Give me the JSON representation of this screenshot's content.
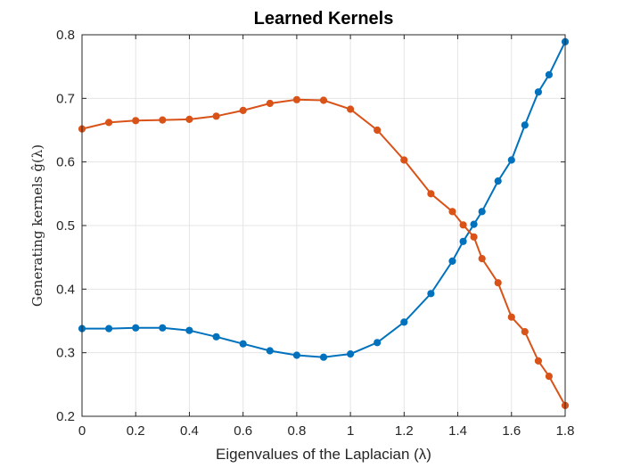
{
  "chart_data": {
    "type": "line",
    "title": "Learned Kernels",
    "xlabel": "Eigenvalues of the Laplacian (λ)",
    "ylabel": "Generating kernels ĝ(λ)",
    "xlim": [
      0,
      1.8
    ],
    "ylim": [
      0.2,
      0.8
    ],
    "x_ticks": [
      "0",
      "0.2",
      "0.4",
      "0.6",
      "0.8",
      "1",
      "1.2",
      "1.4",
      "1.6",
      "1.8"
    ],
    "y_ticks": [
      "0.2",
      "0.3",
      "0.4",
      "0.5",
      "0.6",
      "0.7",
      "0.8"
    ],
    "grid": true,
    "series": [
      {
        "color": "#0072BD",
        "x": [
          0,
          0.1,
          0.2,
          0.3,
          0.4,
          0.5,
          0.6,
          0.7,
          0.8,
          0.9,
          1.0,
          1.1,
          1.2,
          1.3,
          1.38,
          1.42,
          1.46,
          1.49,
          1.55,
          1.6,
          1.65,
          1.7,
          1.74,
          1.8
        ],
        "y": [
          0.338,
          0.338,
          0.339,
          0.339,
          0.335,
          0.325,
          0.314,
          0.303,
          0.296,
          0.293,
          0.298,
          0.316,
          0.348,
          0.393,
          0.444,
          0.475,
          0.502,
          0.522,
          0.57,
          0.603,
          0.658,
          0.71,
          0.737,
          0.789
        ]
      },
      {
        "color": "#D95319",
        "x": [
          0,
          0.1,
          0.2,
          0.3,
          0.4,
          0.5,
          0.6,
          0.7,
          0.8,
          0.9,
          1.0,
          1.1,
          1.2,
          1.3,
          1.38,
          1.42,
          1.46,
          1.49,
          1.55,
          1.6,
          1.65,
          1.7,
          1.74,
          1.8
        ],
        "y": [
          0.652,
          0.662,
          0.665,
          0.666,
          0.667,
          0.672,
          0.681,
          0.692,
          0.698,
          0.697,
          0.683,
          0.65,
          0.603,
          0.55,
          0.522,
          0.501,
          0.482,
          0.448,
          0.41,
          0.356,
          0.333,
          0.287,
          0.263,
          0.217
        ]
      }
    ]
  }
}
